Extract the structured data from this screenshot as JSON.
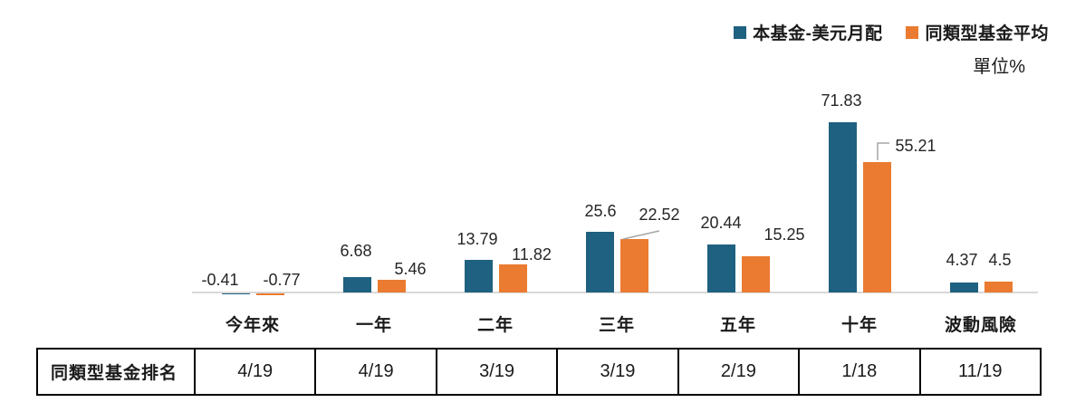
{
  "legend": {
    "items": [
      {
        "label": "本基金-美元月配",
        "color": "#1F6180"
      },
      {
        "label": "同類型基金平均",
        "color": "#EA7B30"
      }
    ]
  },
  "unit_label": "單位%",
  "chart_data": {
    "type": "bar",
    "title": "",
    "xlabel": "",
    "ylabel": "單位%",
    "categories": [
      "今年來",
      "一年",
      "二年",
      "三年",
      "五年",
      "十年",
      "波動風險"
    ],
    "series": [
      {
        "name": "本基金-美元月配",
        "color": "#1F6180",
        "values": [
          -0.41,
          6.68,
          13.79,
          25.6,
          20.44,
          71.83,
          4.37
        ]
      },
      {
        "name": "同類型基金平均",
        "color": "#EA7B30",
        "values": [
          -0.77,
          5.46,
          11.82,
          22.52,
          15.25,
          55.21,
          4.5
        ]
      }
    ],
    "ylim": [
      -1,
      75
    ],
    "grid": false,
    "axis_color": "#D9D9D9",
    "callout_color": "#A6A6A6",
    "legend_position": "top-right",
    "data_labels": true
  },
  "table": {
    "row_label": "同類型基金排名",
    "values": [
      "4/19",
      "4/19",
      "3/19",
      "3/19",
      "2/19",
      "1/18",
      "11/19"
    ]
  }
}
